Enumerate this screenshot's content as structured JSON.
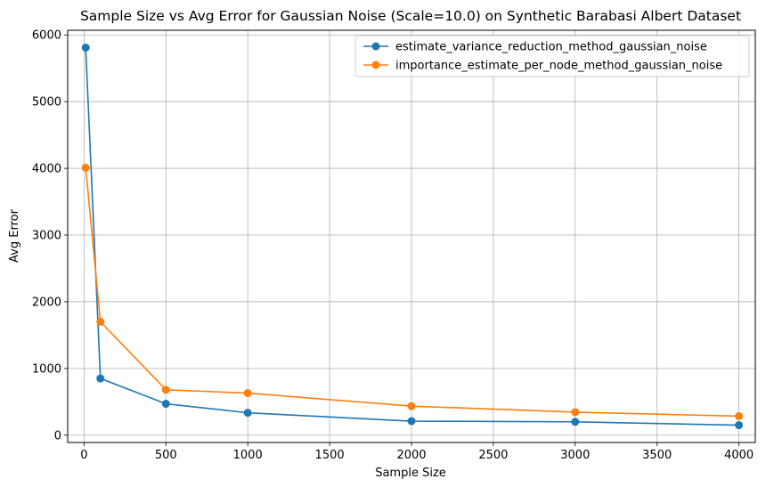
{
  "chart_data": {
    "type": "line",
    "title": "Sample Size vs Avg Error for Gaussian Noise (Scale=10.0) on Synthetic Barabasi Albert Dataset",
    "xlabel": "Sample Size",
    "ylabel": "Avg Error",
    "xlim": [
      -100,
      4100
    ],
    "ylim": [
      -110,
      6070
    ],
    "xticks": [
      0,
      500,
      1000,
      1500,
      2000,
      2500,
      3000,
      3500,
      4000
    ],
    "yticks": [
      0,
      1000,
      2000,
      3000,
      4000,
      5000,
      6000
    ],
    "grid": true,
    "legend_position": "top-right",
    "x": [
      10,
      100,
      500,
      1000,
      2000,
      3000,
      4000
    ],
    "series": [
      {
        "name": "estimate_variance_reduction_method_gaussian_noise",
        "color": "#1f77b4",
        "values": [
          5810,
          850,
          470,
          335,
          210,
          200,
          150
        ]
      },
      {
        "name": "importance_estimate_per_node_method_gaussian_noise",
        "color": "#ff7f0e",
        "values": [
          4010,
          1700,
          680,
          630,
          435,
          345,
          285
        ]
      }
    ]
  }
}
